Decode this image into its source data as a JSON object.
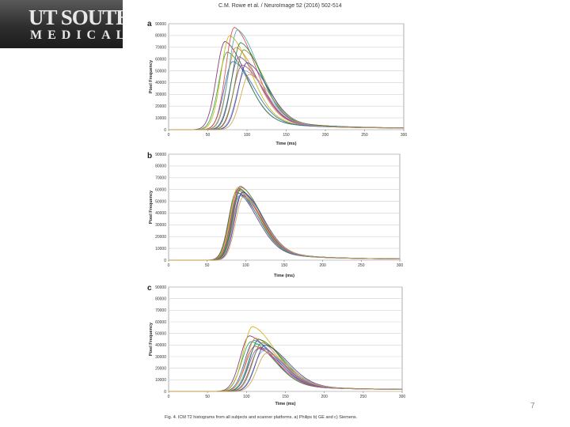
{
  "slide": {
    "logo_top": "UT SOUTHW",
    "logo_bottom": "MEDICAL",
    "citation": "C.M. Rowe et al. / NeuroImage 52 (2016) 502-514",
    "caption": "Fig. 4. ICM T2 histograms from all subjects and scanner platforms. a) Philips b) GE and c) Siemens.",
    "page_number": "7"
  },
  "colors": [
    "#7b2d6b",
    "#2a9d4a",
    "#c8b400",
    "#2c66c8",
    "#d64545",
    "#e08a2a",
    "#4aa3b0",
    "#8a4fbf",
    "#1c7a3c",
    "#b3466e",
    "#6a8f2a",
    "#a0a0d0",
    "#3d3d9e",
    "#d0a040"
  ],
  "chart_data": [
    {
      "type": "line",
      "panel_label": "a",
      "xlabel": "Time (ms)",
      "ylabel": "Pixel Frequency",
      "xlim": [
        0,
        300
      ],
      "ylim": [
        0,
        90000
      ],
      "xticks": [
        0,
        50,
        100,
        150,
        200,
        250,
        300
      ],
      "yticks": [
        0,
        10000,
        20000,
        30000,
        40000,
        50000,
        60000,
        70000,
        80000,
        90000
      ],
      "grid": true,
      "curve_shape": {
        "rise_width_ms": 11,
        "tail_width_ms": 27,
        "baseline_at_300ms": 1200
      },
      "series": [
        {
          "peak_x": 72,
          "peak_y": 75000
        },
        {
          "peak_x": 75,
          "peak_y": 66000
        },
        {
          "peak_x": 78,
          "peak_y": 80000
        },
        {
          "peak_x": 82,
          "peak_y": 58000
        },
        {
          "peak_x": 84,
          "peak_y": 87000
        },
        {
          "peak_x": 86,
          "peak_y": 70000
        },
        {
          "peak_x": 88,
          "peak_y": 85000
        },
        {
          "peak_x": 90,
          "peak_y": 62000
        },
        {
          "peak_x": 92,
          "peak_y": 74000
        },
        {
          "peak_x": 94,
          "peak_y": 55000
        },
        {
          "peak_x": 96,
          "peak_y": 68000
        },
        {
          "peak_x": 98,
          "peak_y": 50000
        },
        {
          "peak_x": 100,
          "peak_y": 57000
        },
        {
          "peak_x": 103,
          "peak_y": 47000
        }
      ]
    },
    {
      "type": "line",
      "panel_label": "b",
      "xlabel": "Time (ms)",
      "ylabel": "Pixel Frequency",
      "xlim": [
        0,
        300
      ],
      "ylim": [
        0,
        90000
      ],
      "xticks": [
        0,
        50,
        100,
        150,
        200,
        250,
        300
      ],
      "yticks": [
        0,
        10000,
        20000,
        30000,
        40000,
        50000,
        60000,
        70000,
        80000,
        90000
      ],
      "grid": true,
      "curve_shape": {
        "rise_width_ms": 10,
        "tail_width_ms": 27,
        "baseline_at_300ms": 800
      },
      "series": [
        {
          "peak_x": 88,
          "peak_y": 58000
        },
        {
          "peak_x": 89,
          "peak_y": 60000
        },
        {
          "peak_x": 90,
          "peak_y": 62000
        },
        {
          "peak_x": 91,
          "peak_y": 57000
        },
        {
          "peak_x": 91,
          "peak_y": 61000
        },
        {
          "peak_x": 92,
          "peak_y": 59000
        },
        {
          "peak_x": 92,
          "peak_y": 55000
        },
        {
          "peak_x": 93,
          "peak_y": 63000
        },
        {
          "peak_x": 93,
          "peak_y": 60000
        },
        {
          "peak_x": 94,
          "peak_y": 56000
        },
        {
          "peak_x": 94,
          "peak_y": 62000
        },
        {
          "peak_x": 95,
          "peak_y": 57000
        },
        {
          "peak_x": 96,
          "peak_y": 58000
        },
        {
          "peak_x": 97,
          "peak_y": 54000
        }
      ]
    },
    {
      "type": "line",
      "panel_label": "c",
      "xlabel": "Time (ms)",
      "ylabel": "Pixel Frequency",
      "xlim": [
        0,
        300
      ],
      "ylim": [
        0,
        90000
      ],
      "xticks": [
        0,
        50,
        100,
        150,
        200,
        250,
        300
      ],
      "yticks": [
        0,
        10000,
        20000,
        30000,
        40000,
        50000,
        60000,
        70000,
        80000,
        90000
      ],
      "grid": true,
      "curve_shape": {
        "rise_width_ms": 12,
        "tail_width_ms": 30,
        "baseline_at_300ms": 1500
      },
      "series": [
        {
          "peak_x": 104,
          "peak_y": 48000
        },
        {
          "peak_x": 106,
          "peak_y": 43000
        },
        {
          "peak_x": 108,
          "peak_y": 56000
        },
        {
          "peak_x": 110,
          "peak_y": 44000
        },
        {
          "peak_x": 111,
          "peak_y": 39000
        },
        {
          "peak_x": 112,
          "peak_y": 46000
        },
        {
          "peak_x": 114,
          "peak_y": 41000
        },
        {
          "peak_x": 115,
          "peak_y": 37000
        },
        {
          "peak_x": 116,
          "peak_y": 45000
        },
        {
          "peak_x": 118,
          "peak_y": 38000
        },
        {
          "peak_x": 120,
          "peak_y": 42000
        },
        {
          "peak_x": 122,
          "peak_y": 35000
        },
        {
          "peak_x": 124,
          "peak_y": 40000
        },
        {
          "peak_x": 126,
          "peak_y": 33000
        }
      ]
    }
  ]
}
